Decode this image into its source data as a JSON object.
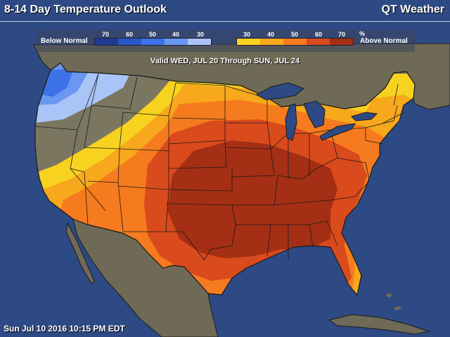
{
  "header": {
    "title": "8-14 Day Temperature Outlook",
    "brand": "QT Weather"
  },
  "legend": {
    "below_label": "Below Normal",
    "above_label": "Above Normal",
    "below_ticks": [
      "70",
      "60",
      "50",
      "40",
      "30"
    ],
    "above_ticks": [
      "30",
      "40",
      "50",
      "60",
      "70"
    ],
    "percent_symbol": "%",
    "below_colors": [
      "#1f3a93",
      "#2a56c9",
      "#3c73e8",
      "#6a97f2",
      "#a9c4f7"
    ],
    "above_colors": [
      "#f7d21f",
      "#f7a81c",
      "#f57b1e",
      "#d94a1c",
      "#a42f14"
    ]
  },
  "valid_period": "Valid WED, JUL 20 Through SUN, JUL 24",
  "timestamp": "Sun Jul 10 2016 10:15 PM EDT",
  "colors": {
    "ocean": "#2e4a84",
    "neutral_land": "#7b7660",
    "outside_land": "#6e6a56",
    "border_lines": "#1a1a1a"
  }
}
